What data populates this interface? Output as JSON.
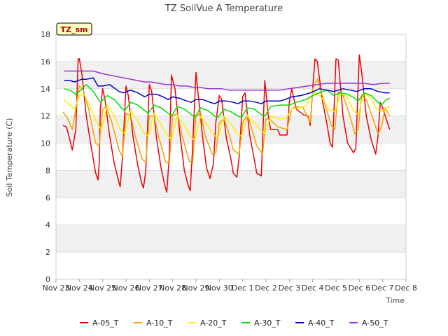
{
  "chart_data": {
    "type": "line",
    "title": "TZ SoilVue A Temperature",
    "xlabel": "Time",
    "ylabel": "Soil Temperature (C)",
    "ylim": [
      0,
      18
    ],
    "yticks": [
      0,
      2,
      4,
      6,
      8,
      10,
      12,
      14,
      16,
      18
    ],
    "xlim": [
      0,
      15
    ],
    "xticks": [
      {
        "value": 0,
        "label": "Nov 23"
      },
      {
        "value": 1,
        "label": "Nov 24"
      },
      {
        "value": 2,
        "label": "Nov 25"
      },
      {
        "value": 3,
        "label": "Nov 26"
      },
      {
        "value": 4,
        "label": "Nov 27"
      },
      {
        "value": 5,
        "label": "Nov 28"
      },
      {
        "value": 6,
        "label": "Nov 29"
      },
      {
        "value": 7,
        "label": "Nov 30"
      },
      {
        "value": 8,
        "label": "Dec 1"
      },
      {
        "value": 9,
        "label": "Dec 2"
      },
      {
        "value": 10,
        "label": "Dec 3"
      },
      {
        "value": 11,
        "label": "Dec 4"
      },
      {
        "value": 12,
        "label": "Dec 5"
      },
      {
        "value": 13,
        "label": "Dec 6"
      },
      {
        "value": 14,
        "label": "Dec 7"
      },
      {
        "value": 15,
        "label": "Dec 8"
      }
    ],
    "grid": true,
    "legend_position": "bottom",
    "site_tag": "TZ_sm",
    "series": [
      {
        "name": "A-05_T",
        "color": "#ee0000",
        "x": [
          0.3,
          0.45,
          0.6,
          0.7,
          0.85,
          0.95,
          1.0,
          1.1,
          1.3,
          1.5,
          1.7,
          1.8,
          1.85,
          1.9,
          2.0,
          2.1,
          2.3,
          2.5,
          2.7,
          2.75,
          2.85,
          3.0,
          3.1,
          3.3,
          3.5,
          3.65,
          3.75,
          3.85,
          4.0,
          4.1,
          4.3,
          4.5,
          4.65,
          4.75,
          4.85,
          4.95,
          5.1,
          5.3,
          5.5,
          5.65,
          5.75,
          5.85,
          6.0,
          6.1,
          6.3,
          6.45,
          6.6,
          6.75,
          6.85,
          7.0,
          7.1,
          7.3,
          7.5,
          7.6,
          7.75,
          7.85,
          8.0,
          8.1,
          8.3,
          8.5,
          8.6,
          8.7,
          8.8,
          8.95,
          9.1,
          9.2,
          9.5,
          9.6,
          9.9,
          10.0,
          10.1,
          10.3,
          10.6,
          10.8,
          10.9,
          11.0,
          11.1,
          11.2,
          11.4,
          11.6,
          11.75,
          11.85,
          12.0,
          12.1,
          12.3,
          12.5,
          12.75,
          12.85,
          13.0,
          13.1,
          13.3,
          13.5,
          13.7,
          13.8,
          13.9,
          14.0,
          14.15,
          14.3
        ],
        "y": [
          11.3,
          11.2,
          10.2,
          9.5,
          11.0,
          16.2,
          16.2,
          15.2,
          12.0,
          9.8,
          7.8,
          7.3,
          8.5,
          12.5,
          14.0,
          13.2,
          10.5,
          8.5,
          7.1,
          6.8,
          9.0,
          14.2,
          13.5,
          10.5,
          8.4,
          7.2,
          6.7,
          8.0,
          14.3,
          13.8,
          10.5,
          8.2,
          7.0,
          6.4,
          9.0,
          15.0,
          14.0,
          10.8,
          8.0,
          7.0,
          6.5,
          9.5,
          15.2,
          13.5,
          10.2,
          8.2,
          7.4,
          8.5,
          11.5,
          13.5,
          13.2,
          10.4,
          8.8,
          7.8,
          7.5,
          9.0,
          13.4,
          13.7,
          10.6,
          8.8,
          7.8,
          7.7,
          7.6,
          14.6,
          12.0,
          11.0,
          11.0,
          10.6,
          10.6,
          13.0,
          14.0,
          12.5,
          12.1,
          12.0,
          11.3,
          14.0,
          16.2,
          16.0,
          13.3,
          11.5,
          10.0,
          9.7,
          16.2,
          16.1,
          12.0,
          10.0,
          9.3,
          9.6,
          16.5,
          15.2,
          12.0,
          10.3,
          9.2,
          10.5,
          13.0,
          12.6,
          11.8,
          11.0
        ]
      },
      {
        "name": "A-10_T",
        "color": "#f4a000",
        "x": [
          0.3,
          0.5,
          0.7,
          0.85,
          1.0,
          1.15,
          1.4,
          1.7,
          1.85,
          2.0,
          2.15,
          2.4,
          2.7,
          2.85,
          3.0,
          3.2,
          3.4,
          3.7,
          3.85,
          4.0,
          4.2,
          4.4,
          4.7,
          4.85,
          5.0,
          5.2,
          5.4,
          5.7,
          5.85,
          6.0,
          6.2,
          6.4,
          6.7,
          6.85,
          7.0,
          7.2,
          7.4,
          7.6,
          7.85,
          8.0,
          8.2,
          8.4,
          8.6,
          8.85,
          9.0,
          9.2,
          9.5,
          9.9,
          10.1,
          10.3,
          10.6,
          10.9,
          11.0,
          11.2,
          11.5,
          11.8,
          11.95,
          12.1,
          12.3,
          12.6,
          12.8,
          12.95,
          13.1,
          13.3,
          13.6,
          13.8,
          13.95,
          14.1,
          14.3
        ],
        "y": [
          12.3,
          11.8,
          11.0,
          12.5,
          14.2,
          14.0,
          12.5,
          10.0,
          9.8,
          12.5,
          12.7,
          11.5,
          9.5,
          9.0,
          12.2,
          12.0,
          10.5,
          8.8,
          8.6,
          12.0,
          12.0,
          10.5,
          8.6,
          8.5,
          12.0,
          12.2,
          10.6,
          8.7,
          8.5,
          12.0,
          12.2,
          10.5,
          9.2,
          9.3,
          11.5,
          11.8,
          10.8,
          9.5,
          9.2,
          11.5,
          12.1,
          11.0,
          9.8,
          9.2,
          11.8,
          11.7,
          11.2,
          11.0,
          12.5,
          12.7,
          12.6,
          11.5,
          14.0,
          14.7,
          13.0,
          11.3,
          11.0,
          13.8,
          13.5,
          12.0,
          10.7,
          11.0,
          13.5,
          13.2,
          11.7,
          10.7,
          11.2,
          12.6,
          12.0
        ]
      },
      {
        "name": "A-20_T",
        "color": "#ffee00",
        "x": [
          0.35,
          0.6,
          0.8,
          1.0,
          1.2,
          1.5,
          1.75,
          1.95,
          2.2,
          2.5,
          2.75,
          2.95,
          3.2,
          3.5,
          3.75,
          3.95,
          4.2,
          4.5,
          4.75,
          4.95,
          5.2,
          5.5,
          5.75,
          5.95,
          6.2,
          6.5,
          6.75,
          6.95,
          7.2,
          7.5,
          7.75,
          7.95,
          8.2,
          8.5,
          8.75,
          8.95,
          9.2,
          9.5,
          9.85,
          10.1,
          10.4,
          10.7,
          10.9,
          11.1,
          11.4,
          11.7,
          11.95,
          12.2,
          12.5,
          12.75,
          12.95,
          13.2,
          13.5,
          13.75,
          13.95,
          14.15,
          14.3
        ],
        "y": [
          13.2,
          12.8,
          12.5,
          13.5,
          13.6,
          12.5,
          11.5,
          11.0,
          12.8,
          12.0,
          11.0,
          10.7,
          12.4,
          11.6,
          10.8,
          10.5,
          12.2,
          11.4,
          10.6,
          10.3,
          12.0,
          11.3,
          10.5,
          10.2,
          12.0,
          11.3,
          10.6,
          10.4,
          12.0,
          11.4,
          10.7,
          10.5,
          12.0,
          11.5,
          11.0,
          10.7,
          12.0,
          11.8,
          11.8,
          12.5,
          12.6,
          12.7,
          13.4,
          13.8,
          13.3,
          12.5,
          12.3,
          13.7,
          13.3,
          12.4,
          12.1,
          13.7,
          13.3,
          12.5,
          12.3,
          12.6,
          12.7
        ]
      },
      {
        "name": "A-30_T",
        "color": "#00dd00",
        "x": [
          0.35,
          0.6,
          0.85,
          1.0,
          1.3,
          1.6,
          1.9,
          2.2,
          2.5,
          2.8,
          2.95,
          3.2,
          3.5,
          3.8,
          3.95,
          4.2,
          4.5,
          4.8,
          4.95,
          5.2,
          5.5,
          5.8,
          5.95,
          6.2,
          6.5,
          6.8,
          6.95,
          7.2,
          7.5,
          7.8,
          7.95,
          8.2,
          8.5,
          8.8,
          8.95,
          9.2,
          9.6,
          10.0,
          10.3,
          10.7,
          11.0,
          11.3,
          11.6,
          11.9,
          12.2,
          12.5,
          12.8,
          12.95,
          13.2,
          13.5,
          13.8,
          13.95,
          14.15,
          14.3
        ],
        "y": [
          14.0,
          13.9,
          13.6,
          13.8,
          14.3,
          13.8,
          13.0,
          13.5,
          13.2,
          12.6,
          12.4,
          13.0,
          12.8,
          12.4,
          12.2,
          12.8,
          12.6,
          12.2,
          12.0,
          12.7,
          12.5,
          12.1,
          11.9,
          12.6,
          12.4,
          12.0,
          11.9,
          12.5,
          12.3,
          12.0,
          11.9,
          12.6,
          12.5,
          12.1,
          12.0,
          12.7,
          12.8,
          12.8,
          13.0,
          13.2,
          13.5,
          13.7,
          13.9,
          13.5,
          13.7,
          13.6,
          13.3,
          13.1,
          13.7,
          13.5,
          13.0,
          12.8,
          13.2,
          13.3
        ]
      },
      {
        "name": "A-40_T",
        "color": "#0000cc",
        "x": [
          0.35,
          0.6,
          0.8,
          1.1,
          1.3,
          1.6,
          1.7,
          1.8,
          2.0,
          2.3,
          2.7,
          2.9,
          3.2,
          3.5,
          3.8,
          4.0,
          4.3,
          4.6,
          4.8,
          5.0,
          5.3,
          5.6,
          5.8,
          6.0,
          6.3,
          6.6,
          6.8,
          7.0,
          7.3,
          7.6,
          7.8,
          8.0,
          8.3,
          8.6,
          8.8,
          9.0,
          9.3,
          9.6,
          9.8,
          10.1,
          10.5,
          10.9,
          11.3,
          11.6,
          11.9,
          12.3,
          12.6,
          12.9,
          13.2,
          13.5,
          13.8,
          14.1,
          14.3
        ],
        "y": [
          14.6,
          14.6,
          14.5,
          14.7,
          14.7,
          14.8,
          14.5,
          14.2,
          14.2,
          14.3,
          13.8,
          13.7,
          13.9,
          13.7,
          13.4,
          13.6,
          13.6,
          13.4,
          13.2,
          13.4,
          13.3,
          13.1,
          13.0,
          13.2,
          13.2,
          13.0,
          12.9,
          13.1,
          13.1,
          13.0,
          12.9,
          13.1,
          13.1,
          13.0,
          12.9,
          13.1,
          13.1,
          13.1,
          13.2,
          13.4,
          13.5,
          13.7,
          14.0,
          13.9,
          13.8,
          14.0,
          13.9,
          13.8,
          14.0,
          14.0,
          13.8,
          13.7,
          13.7
        ]
      },
      {
        "name": "A-50_T",
        "color": "#9933cc",
        "x": [
          0.35,
          0.6,
          0.9,
          1.2,
          1.5,
          1.6,
          1.8,
          2.0,
          2.3,
          2.6,
          2.9,
          3.2,
          3.5,
          3.8,
          4.1,
          4.4,
          4.7,
          5.0,
          5.3,
          5.6,
          5.9,
          6.2,
          6.5,
          6.8,
          7.1,
          7.4,
          7.7,
          8.0,
          8.4,
          8.8,
          9.2,
          9.6,
          10.0,
          10.4,
          10.8,
          11.2,
          11.6,
          12.0,
          12.4,
          12.8,
          13.2,
          13.6,
          14.0,
          14.3
        ],
        "y": [
          15.3,
          15.3,
          15.3,
          15.3,
          15.3,
          15.3,
          15.2,
          15.1,
          15.0,
          14.9,
          14.8,
          14.7,
          14.6,
          14.5,
          14.5,
          14.4,
          14.3,
          14.3,
          14.2,
          14.2,
          14.1,
          14.1,
          14.0,
          14.0,
          14.0,
          13.9,
          13.9,
          13.9,
          13.9,
          13.9,
          13.9,
          13.9,
          14.0,
          14.1,
          14.2,
          14.3,
          14.4,
          14.4,
          14.4,
          14.4,
          14.4,
          14.3,
          14.4,
          14.4
        ]
      }
    ]
  }
}
